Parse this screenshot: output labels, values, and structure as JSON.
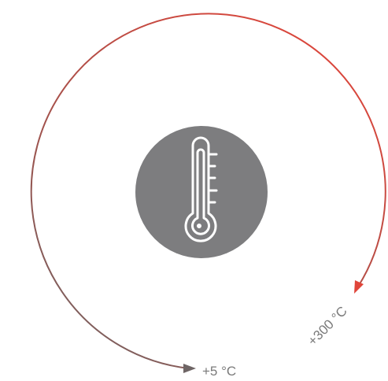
{
  "range": {
    "min_label": "+5 °C",
    "max_label": "+300 °C"
  },
  "icon": {
    "name": "thermometer-icon",
    "badge_color": "#7d7d7f",
    "glyph_color": "#ffffff"
  },
  "colors": {
    "arc_start": "#6e6565",
    "arc_end": "#e0453a"
  }
}
